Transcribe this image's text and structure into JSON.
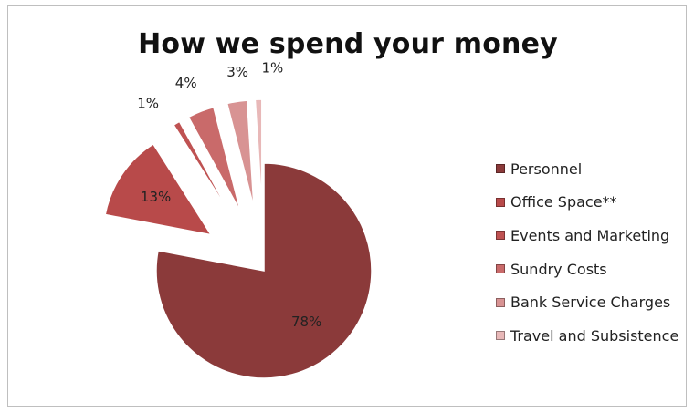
{
  "chart_data": {
    "type": "pie",
    "title": "How we spend your money",
    "categories": [
      "Personnel",
      "Office Space**",
      "Events and Marketing",
      "Sundry Costs",
      "Bank Service Charges",
      "Travel and Subsistence"
    ],
    "values": [
      78,
      13,
      1,
      4,
      3,
      1
    ],
    "labels": [
      "78%",
      "13%",
      "1%",
      "4%",
      "3%",
      "1%"
    ],
    "colors": [
      "#8b3a3a",
      "#b84a4a",
      "#bf5252",
      "#c96a6a",
      "#d89393",
      "#e8b8b8"
    ],
    "exploded": [
      false,
      true,
      true,
      true,
      true,
      true
    ],
    "legend_position": "right"
  }
}
